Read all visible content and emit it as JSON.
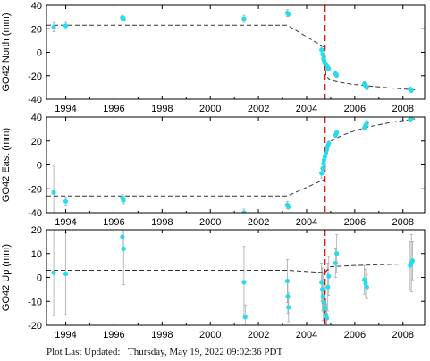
{
  "colors": {
    "data_point": "#22ddee",
    "error_bar": "#aaaaaa",
    "model_line": "#333333",
    "event_line": "#dd0000",
    "axis": "#000000"
  },
  "footer": {
    "label": "Plot Last Updated:",
    "timestamp": "Thursday, May 19, 2022 09:02:36 PDT"
  },
  "chart_data": [
    {
      "type": "scatter",
      "ylabel": "GO42 North (mm)",
      "xlim": [
        1993.2,
        2008.9
      ],
      "ylim": [
        -40,
        40
      ],
      "xticks": [
        1994,
        1996,
        1998,
        2000,
        2002,
        2004,
        2006,
        2008
      ],
      "yticks": [
        -40,
        -20,
        0,
        20,
        40
      ],
      "grid": false,
      "event_epoch": 2004.75,
      "points": [
        {
          "x": 1993.5,
          "y": 21.5,
          "err": 4
        },
        {
          "x": 1994.0,
          "y": 22.5,
          "err": 3
        },
        {
          "x": 1996.35,
          "y": 29.5,
          "err": 2
        },
        {
          "x": 1996.4,
          "y": 28.5,
          "err": 2
        },
        {
          "x": 2001.4,
          "y": 28.5,
          "err": 3
        },
        {
          "x": 2003.2,
          "y": 33.5,
          "err": 3
        },
        {
          "x": 2003.25,
          "y": 32.5,
          "err": 2
        },
        {
          "x": 2004.62,
          "y": 2.0,
          "err": 3
        },
        {
          "x": 2004.67,
          "y": -2.0,
          "err": 3
        },
        {
          "x": 2004.7,
          "y": -5.5,
          "err": 2
        },
        {
          "x": 2004.72,
          "y": -7.0,
          "err": 3
        },
        {
          "x": 2004.76,
          "y": -9.0,
          "err": 2
        },
        {
          "x": 2004.8,
          "y": -10.5,
          "err": 2
        },
        {
          "x": 2004.84,
          "y": -12.0,
          "err": 3
        },
        {
          "x": 2004.88,
          "y": -13.0,
          "err": 2
        },
        {
          "x": 2004.92,
          "y": -14.0,
          "err": 2
        },
        {
          "x": 2005.2,
          "y": -18.5,
          "err": 2
        },
        {
          "x": 2005.25,
          "y": -19.5,
          "err": 2
        },
        {
          "x": 2006.4,
          "y": -27.0,
          "err": 2
        },
        {
          "x": 2006.45,
          "y": -28.5,
          "err": 2
        },
        {
          "x": 2006.5,
          "y": -30.0,
          "err": 2
        },
        {
          "x": 2008.3,
          "y": -31.5,
          "err": 2
        },
        {
          "x": 2008.35,
          "y": -32.5,
          "err": 2
        }
      ],
      "model": {
        "x": [
          1993.2,
          2003.2,
          2004.75,
          2004.8,
          2005.0,
          2005.5,
          2006.0,
          2006.5,
          2007.0,
          2007.5,
          2008.0,
          2008.5
        ],
        "y": [
          23,
          23,
          4,
          -20,
          -24,
          -26,
          -27.5,
          -28.5,
          -29.5,
          -30.5,
          -31.2,
          -32
        ]
      }
    },
    {
      "type": "scatter",
      "ylabel": "GO42 East (mm)",
      "xlim": [
        1993.2,
        2008.9
      ],
      "ylim": [
        -40,
        40
      ],
      "xticks": [
        1994,
        1996,
        1998,
        2000,
        2002,
        2004,
        2006,
        2008
      ],
      "yticks": [
        -40,
        -20,
        0,
        20,
        40
      ],
      "grid": false,
      "event_epoch": 2004.75,
      "points": [
        {
          "x": 1993.5,
          "y": -23.0,
          "err": 22
        },
        {
          "x": 1994.0,
          "y": -30.5,
          "err": 3
        },
        {
          "x": 1996.35,
          "y": -27.5,
          "err": 3
        },
        {
          "x": 1996.4,
          "y": -29.5,
          "err": 3
        },
        {
          "x": 2001.4,
          "y": -40.0,
          "err": 3
        },
        {
          "x": 2003.2,
          "y": -33.5,
          "err": 3
        },
        {
          "x": 2003.25,
          "y": -35.0,
          "err": 2
        },
        {
          "x": 2004.62,
          "y": -7.0,
          "err": 4
        },
        {
          "x": 2004.67,
          "y": -3.0,
          "err": 4
        },
        {
          "x": 2004.7,
          "y": 1.0,
          "err": 3
        },
        {
          "x": 2004.72,
          "y": 4.0,
          "err": 3
        },
        {
          "x": 2004.76,
          "y": 7.0,
          "err": 3
        },
        {
          "x": 2004.8,
          "y": 10.0,
          "err": 2
        },
        {
          "x": 2004.84,
          "y": 13.0,
          "err": 2
        },
        {
          "x": 2004.88,
          "y": 16.0,
          "err": 2
        },
        {
          "x": 2004.92,
          "y": 18.0,
          "err": 2
        },
        {
          "x": 2005.2,
          "y": 25.0,
          "err": 2
        },
        {
          "x": 2005.25,
          "y": 27.0,
          "err": 2
        },
        {
          "x": 2006.4,
          "y": 31.0,
          "err": 2
        },
        {
          "x": 2006.45,
          "y": 33.0,
          "err": 2
        },
        {
          "x": 2006.5,
          "y": 35.0,
          "err": 2
        },
        {
          "x": 2008.3,
          "y": 38.0,
          "err": 2
        },
        {
          "x": 2008.35,
          "y": 39.5,
          "err": 2
        }
      ],
      "model": {
        "x": [
          1993.2,
          2003.2,
          2004.75,
          2004.8,
          2005.0,
          2005.5,
          2006.0,
          2006.5,
          2007.0,
          2007.5,
          2008.0,
          2008.5
        ],
        "y": [
          -26,
          -26,
          -12,
          14,
          20,
          25,
          28.5,
          31.5,
          33.5,
          35.5,
          37,
          38.5
        ]
      }
    },
    {
      "type": "scatter",
      "ylabel": "GO42 Up (mm)",
      "xlim": [
        1993.2,
        2008.9
      ],
      "ylim": [
        -20,
        20
      ],
      "xticks": [
        1994,
        1996,
        1998,
        2000,
        2002,
        2004,
        2006,
        2008
      ],
      "yticks": [
        -20,
        -10,
        0,
        10,
        20
      ],
      "grid": false,
      "event_epoch": 2004.75,
      "points": [
        {
          "x": 1993.5,
          "y": 2.0,
          "err": 18
        },
        {
          "x": 1994.0,
          "y": 1.5,
          "err": 17
        },
        {
          "x": 1996.35,
          "y": 17.0,
          "err": 5
        },
        {
          "x": 1996.4,
          "y": 12.0,
          "err": 15
        },
        {
          "x": 2001.4,
          "y": -2.0,
          "err": 15
        },
        {
          "x": 2001.45,
          "y": -16.5,
          "err": 5
        },
        {
          "x": 2003.2,
          "y": -1.5,
          "err": 9
        },
        {
          "x": 2003.22,
          "y": -8.0,
          "err": 7
        },
        {
          "x": 2003.25,
          "y": -12.5,
          "err": 6
        },
        {
          "x": 2004.62,
          "y": -2.0,
          "err": 8
        },
        {
          "x": 2004.65,
          "y": -5.0,
          "err": 9
        },
        {
          "x": 2004.68,
          "y": -8.0,
          "err": 10
        },
        {
          "x": 2004.72,
          "y": -10.5,
          "err": 8
        },
        {
          "x": 2004.76,
          "y": -13.0,
          "err": 7
        },
        {
          "x": 2004.8,
          "y": -15.5,
          "err": 7
        },
        {
          "x": 2004.84,
          "y": -17.0,
          "err": 6
        },
        {
          "x": 2004.88,
          "y": -4.0,
          "err": 10
        },
        {
          "x": 2004.92,
          "y": 0.5,
          "err": 8
        },
        {
          "x": 2005.2,
          "y": 6.0,
          "err": 6
        },
        {
          "x": 2005.25,
          "y": 10.0,
          "err": 8
        },
        {
          "x": 2006.4,
          "y": -1.0,
          "err": 6
        },
        {
          "x": 2006.45,
          "y": -2.5,
          "err": 6
        },
        {
          "x": 2006.5,
          "y": -4.0,
          "err": 5
        },
        {
          "x": 2008.3,
          "y": 5.0,
          "err": 10
        },
        {
          "x": 2008.35,
          "y": 6.0,
          "err": 12
        },
        {
          "x": 2008.4,
          "y": 7.0,
          "err": 8
        }
      ],
      "model": {
        "x": [
          1993.2,
          2003.2,
          2004.75,
          2005.0,
          2006.0,
          2007.0,
          2008.0,
          2008.5
        ],
        "y": [
          3,
          3,
          2,
          4.5,
          5,
          5.3,
          5.6,
          5.8
        ]
      }
    }
  ]
}
